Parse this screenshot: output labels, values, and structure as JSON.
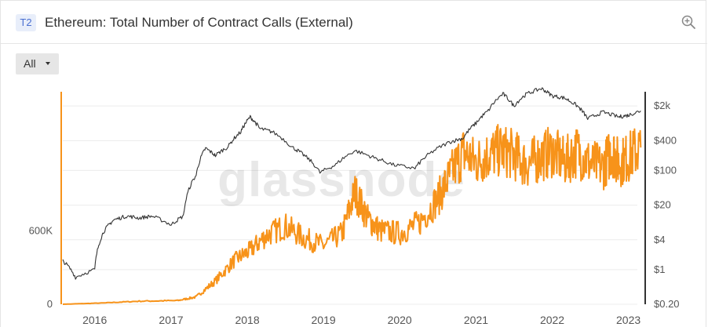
{
  "header": {
    "badge": "T2",
    "title": "Ethereum: Total Number of Contract Calls (External)",
    "zoom_icon": "zoom-in-icon"
  },
  "controls": {
    "range_selected": "All"
  },
  "watermark": "glassnode",
  "colors": {
    "calls_series": "#f7931a",
    "price_series": "#333333",
    "grid": "#ececec",
    "badge_bg": "#e8eefa",
    "badge_text": "#4a6fd1"
  },
  "chart_data": {
    "type": "line",
    "title": "Ethereum: Total Number of Contract Calls (External)",
    "xlabel": "",
    "ylabel": "",
    "grid": true,
    "x_ticks": [
      "2016",
      "2017",
      "2018",
      "2019",
      "2020",
      "2021",
      "2022",
      "2023"
    ],
    "y_left": {
      "ticks": [
        "0",
        "600K"
      ],
      "tick_values": [
        0,
        600000
      ],
      "lim": [
        0,
        1780000
      ]
    },
    "y_right": {
      "scale": "log",
      "ticks": [
        "$0.20",
        "$1",
        "$4",
        "$20",
        "$100",
        "$400",
        "$2k"
      ],
      "tick_values": [
        0.2,
        1,
        4,
        20,
        100,
        400,
        2000
      ],
      "lim": [
        0.2,
        5000
      ]
    },
    "x_range": [
      "2015-08-01",
      "2023-03-15"
    ],
    "series": [
      {
        "axis": "left",
        "color": "#f7931a",
        "x": [
          "2015-08-01",
          "2016-02-01",
          "2016-08-01",
          "2017-02-01",
          "2017-05-01",
          "2017-08-01",
          "2017-11-01",
          "2018-01-15",
          "2018-04-01",
          "2018-07-01",
          "2018-10-01",
          "2019-01-01",
          "2019-04-01",
          "2019-06-01",
          "2019-08-01",
          "2019-10-01",
          "2020-01-01",
          "2020-04-01",
          "2020-07-01",
          "2020-09-01",
          "2020-11-01",
          "2021-01-01",
          "2021-03-01",
          "2021-05-01",
          "2021-07-01",
          "2021-09-01",
          "2021-11-01",
          "2022-01-01",
          "2022-03-01",
          "2022-05-01",
          "2022-07-01",
          "2022-09-01",
          "2022-10-15",
          "2022-11-15",
          "2023-01-01",
          "2023-03-01"
        ],
        "values": [
          0,
          10000,
          25000,
          30000,
          60000,
          190000,
          360000,
          440000,
          560000,
          640000,
          540000,
          480000,
          580000,
          920000,
          700000,
          600000,
          580000,
          660000,
          860000,
          1060000,
          1240000,
          1160000,
          1220000,
          1260000,
          1220000,
          1140000,
          1200000,
          1250000,
          1160000,
          1250000,
          1150000,
          1120000,
          1260000,
          1150000,
          1200000,
          1280000
        ]
      },
      {
        "axis": "right",
        "color": "#333333",
        "x": [
          "2015-08-01",
          "2015-10-01",
          "2016-01-01",
          "2016-02-15",
          "2016-04-01",
          "2016-06-01",
          "2016-08-01",
          "2016-10-01",
          "2017-01-01",
          "2017-03-01",
          "2017-05-01",
          "2017-06-15",
          "2017-08-01",
          "2017-10-01",
          "2017-12-01",
          "2018-01-15",
          "2018-03-01",
          "2018-05-01",
          "2018-08-01",
          "2018-10-01",
          "2018-12-15",
          "2019-03-01",
          "2019-06-01",
          "2019-09-01",
          "2019-12-01",
          "2020-03-15",
          "2020-06-01",
          "2020-09-01",
          "2020-11-01",
          "2021-01-01",
          "2021-03-01",
          "2021-05-10",
          "2021-07-01",
          "2021-09-01",
          "2021-11-10",
          "2022-01-01",
          "2022-03-01",
          "2022-05-01",
          "2022-06-20",
          "2022-09-01",
          "2022-11-15",
          "2023-01-01",
          "2023-03-01"
        ],
        "values": [
          1.5,
          0.7,
          1,
          6,
          10,
          12,
          11,
          12,
          8,
          12,
          80,
          280,
          200,
          300,
          600,
          1200,
          700,
          600,
          300,
          200,
          90,
          130,
          250,
          180,
          130,
          110,
          230,
          380,
          450,
          900,
          1600,
          3500,
          2000,
          3500,
          4500,
          3200,
          2900,
          2000,
          1100,
          1500,
          1200,
          1300,
          1600
        ]
      }
    ]
  }
}
